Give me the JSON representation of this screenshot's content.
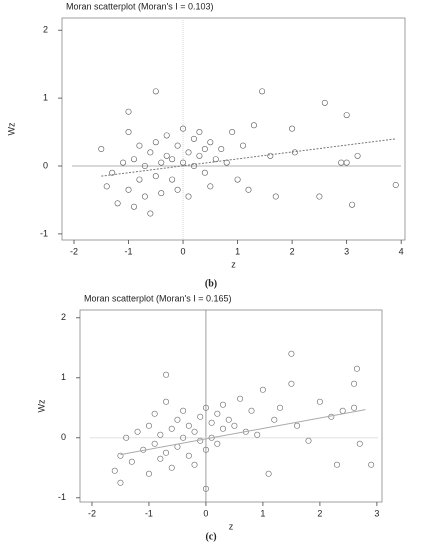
{
  "chart_data": [
    {
      "type": "scatter",
      "title": "Moran scatterplot (Moran's I = 0.103)",
      "caption": "(b)",
      "x_label": "z",
      "y_label": "Wz",
      "xlim": [
        -2.22,
        4.07
      ],
      "ylim": [
        -1.09,
        2.18
      ],
      "xticks": [
        -2,
        -1,
        0,
        1,
        2,
        3,
        4
      ],
      "yticks": [
        -1,
        0,
        1,
        2
      ],
      "color": "#555555",
      "x": [
        -1.5,
        -1.4,
        -1.3,
        -1.2,
        -1.1,
        -1.0,
        -1.0,
        -0.9,
        -0.9,
        -0.8,
        -0.8,
        -0.7,
        -0.7,
        -0.6,
        -0.6,
        -0.5,
        -0.5,
        -0.4,
        -0.4,
        -0.3,
        -0.3,
        -0.2,
        -0.2,
        -0.1,
        -0.1,
        0,
        0,
        0.1,
        0.1,
        0.2,
        0.2,
        0.3,
        0.3,
        0.4,
        0.4,
        0.5,
        0.5,
        0.6,
        0.7,
        0.8,
        0.9,
        1.0,
        1.1,
        1.2,
        1.3,
        1.45,
        1.6,
        1.7,
        2.0,
        2.05,
        2.5,
        2.6,
        2.9,
        3.0,
        3.0,
        3.1,
        3.2,
        3.9,
        -0.5,
        -1.0
      ],
      "values": [
        0.25,
        -0.3,
        -0.1,
        -0.55,
        0.05,
        0.5,
        -0.35,
        0.1,
        -0.6,
        0.3,
        -0.2,
        0.0,
        -0.45,
        0.2,
        -0.7,
        0.35,
        -0.15,
        0.05,
        -0.4,
        0.15,
        0.45,
        -0.2,
        0.1,
        0.3,
        -0.35,
        0.55,
        0.05,
        0.2,
        -0.45,
        0.4,
        0.0,
        0.15,
        0.5,
        -0.1,
        0.25,
        0.35,
        -0.3,
        0.1,
        0.25,
        0.05,
        0.5,
        -0.2,
        0.3,
        -0.35,
        0.6,
        1.1,
        0.15,
        -0.45,
        0.55,
        0.2,
        -0.45,
        0.93,
        0.05,
        0.05,
        0.75,
        -0.57,
        0.15,
        -0.28,
        1.1,
        0.8
      ],
      "trend": {
        "x": [
          -1.5,
          3.9
        ],
        "y": [
          -0.15,
          0.4
        ],
        "dashed": true,
        "color": "#777777"
      }
    },
    {
      "type": "scatter",
      "title": "Moran scatterplot (Moran's I = 0.165)",
      "caption": "(c)",
      "x_label": "z",
      "y_label": "Wz",
      "xlim": [
        -2.21,
        3.09
      ],
      "ylim": [
        -1.07,
        2.13
      ],
      "xticks": [
        -2,
        -1,
        0,
        1,
        2,
        3
      ],
      "yticks": [
        -1,
        0,
        1,
        2
      ],
      "color": "#666666",
      "x": [
        -1.6,
        -1.5,
        -1.4,
        -1.3,
        -1.2,
        -1.1,
        -1.0,
        -1.0,
        -0.9,
        -0.9,
        -0.8,
        -0.8,
        -0.7,
        -0.7,
        -0.6,
        -0.6,
        -0.5,
        -0.5,
        -0.4,
        -0.4,
        -0.3,
        -0.3,
        -0.2,
        -0.2,
        -0.1,
        -0.1,
        0,
        0,
        0.1,
        0.1,
        0.2,
        0.2,
        0.3,
        0.3,
        0.4,
        0.5,
        0.6,
        0.7,
        0.8,
        0.9,
        1.0,
        1.1,
        1.2,
        1.3,
        1.5,
        1.6,
        1.8,
        2.0,
        2.2,
        2.3,
        2.4,
        2.6,
        2.6,
        2.65,
        2.7,
        2.9,
        -1.5,
        0,
        -0.7,
        1.5
      ],
      "values": [
        -0.55,
        -0.3,
        0.0,
        -0.4,
        0.1,
        -0.2,
        0.2,
        -0.6,
        -0.1,
        0.4,
        0.05,
        -0.35,
        0.6,
        -0.25,
        0.15,
        -0.5,
        0.3,
        -0.15,
        0.0,
        0.45,
        -0.3,
        0.2,
        0.1,
        -0.45,
        0.35,
        -0.05,
        0.5,
        -0.2,
        0.25,
        0.0,
        0.4,
        -0.1,
        0.15,
        0.55,
        0.3,
        0.2,
        0.65,
        0.1,
        0.45,
        0.05,
        0.8,
        -0.6,
        0.3,
        0.5,
        0.9,
        0.2,
        -0.05,
        0.6,
        0.35,
        -0.45,
        0.45,
        0.5,
        0.9,
        1.15,
        -0.1,
        -0.45,
        -0.75,
        -0.85,
        1.05,
        1.4
      ],
      "trend": {
        "x": [
          -1.5,
          2.8
        ],
        "y": [
          -0.28,
          0.47
        ],
        "dashed": false,
        "color": "#aaaaaa"
      }
    }
  ]
}
